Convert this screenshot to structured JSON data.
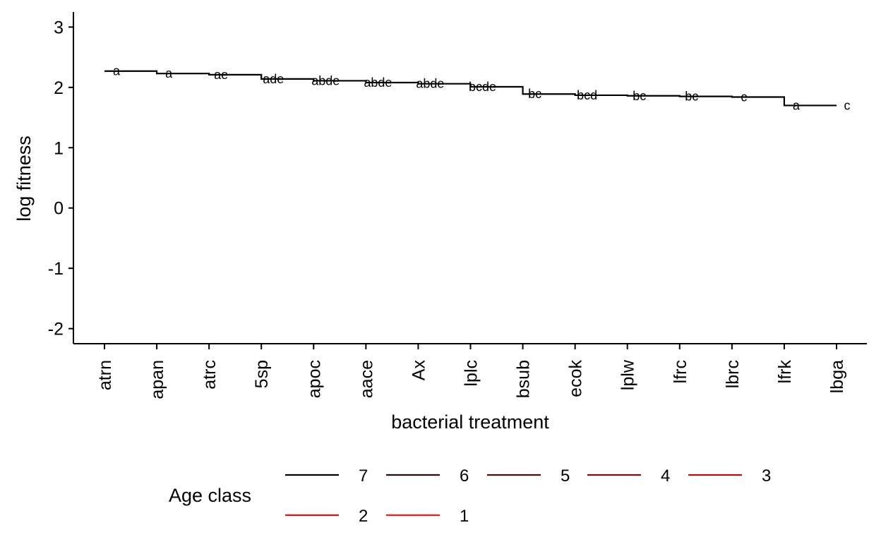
{
  "chart_data": {
    "type": "line",
    "title": "",
    "xlabel": "bacterial treatment",
    "ylabel": "log fitness",
    "categories": [
      "atrn",
      "apan",
      "atrc",
      "5sp",
      "apoc",
      "aace",
      "Ax",
      "lplc",
      "bsub",
      "ecok",
      "lplw",
      "lfrc",
      "lbrc",
      "lfrk",
      "lbga"
    ],
    "ylim": [
      -2.25,
      3.25
    ],
    "yticks": [
      -2,
      -1,
      0,
      1,
      2,
      3
    ],
    "grid": false,
    "legend": {
      "title": "Age class",
      "position": "bottom",
      "entries": [
        "7",
        "6",
        "5",
        "4",
        "3",
        "2",
        "1"
      ],
      "colors": [
        "#000000",
        "#2a0a0a",
        "#4a0d0d",
        "#7a0b0b",
        "#b40f0f",
        "#dd1111",
        "#ff1a1a"
      ]
    },
    "series": [
      {
        "name": "7",
        "values": [
          2.27,
          2.23,
          2.21,
          2.14,
          2.11,
          2.08,
          2.06,
          2.01,
          1.89,
          1.87,
          1.86,
          1.85,
          1.84,
          1.7,
          1.7
        ]
      }
    ],
    "letters": [
      "a",
      "a",
      "ae",
      "ade",
      "abde",
      "abde",
      "abde",
      "bcde",
      "bc",
      "bcd",
      "bc",
      "bc",
      "c",
      "a",
      "c"
    ]
  }
}
